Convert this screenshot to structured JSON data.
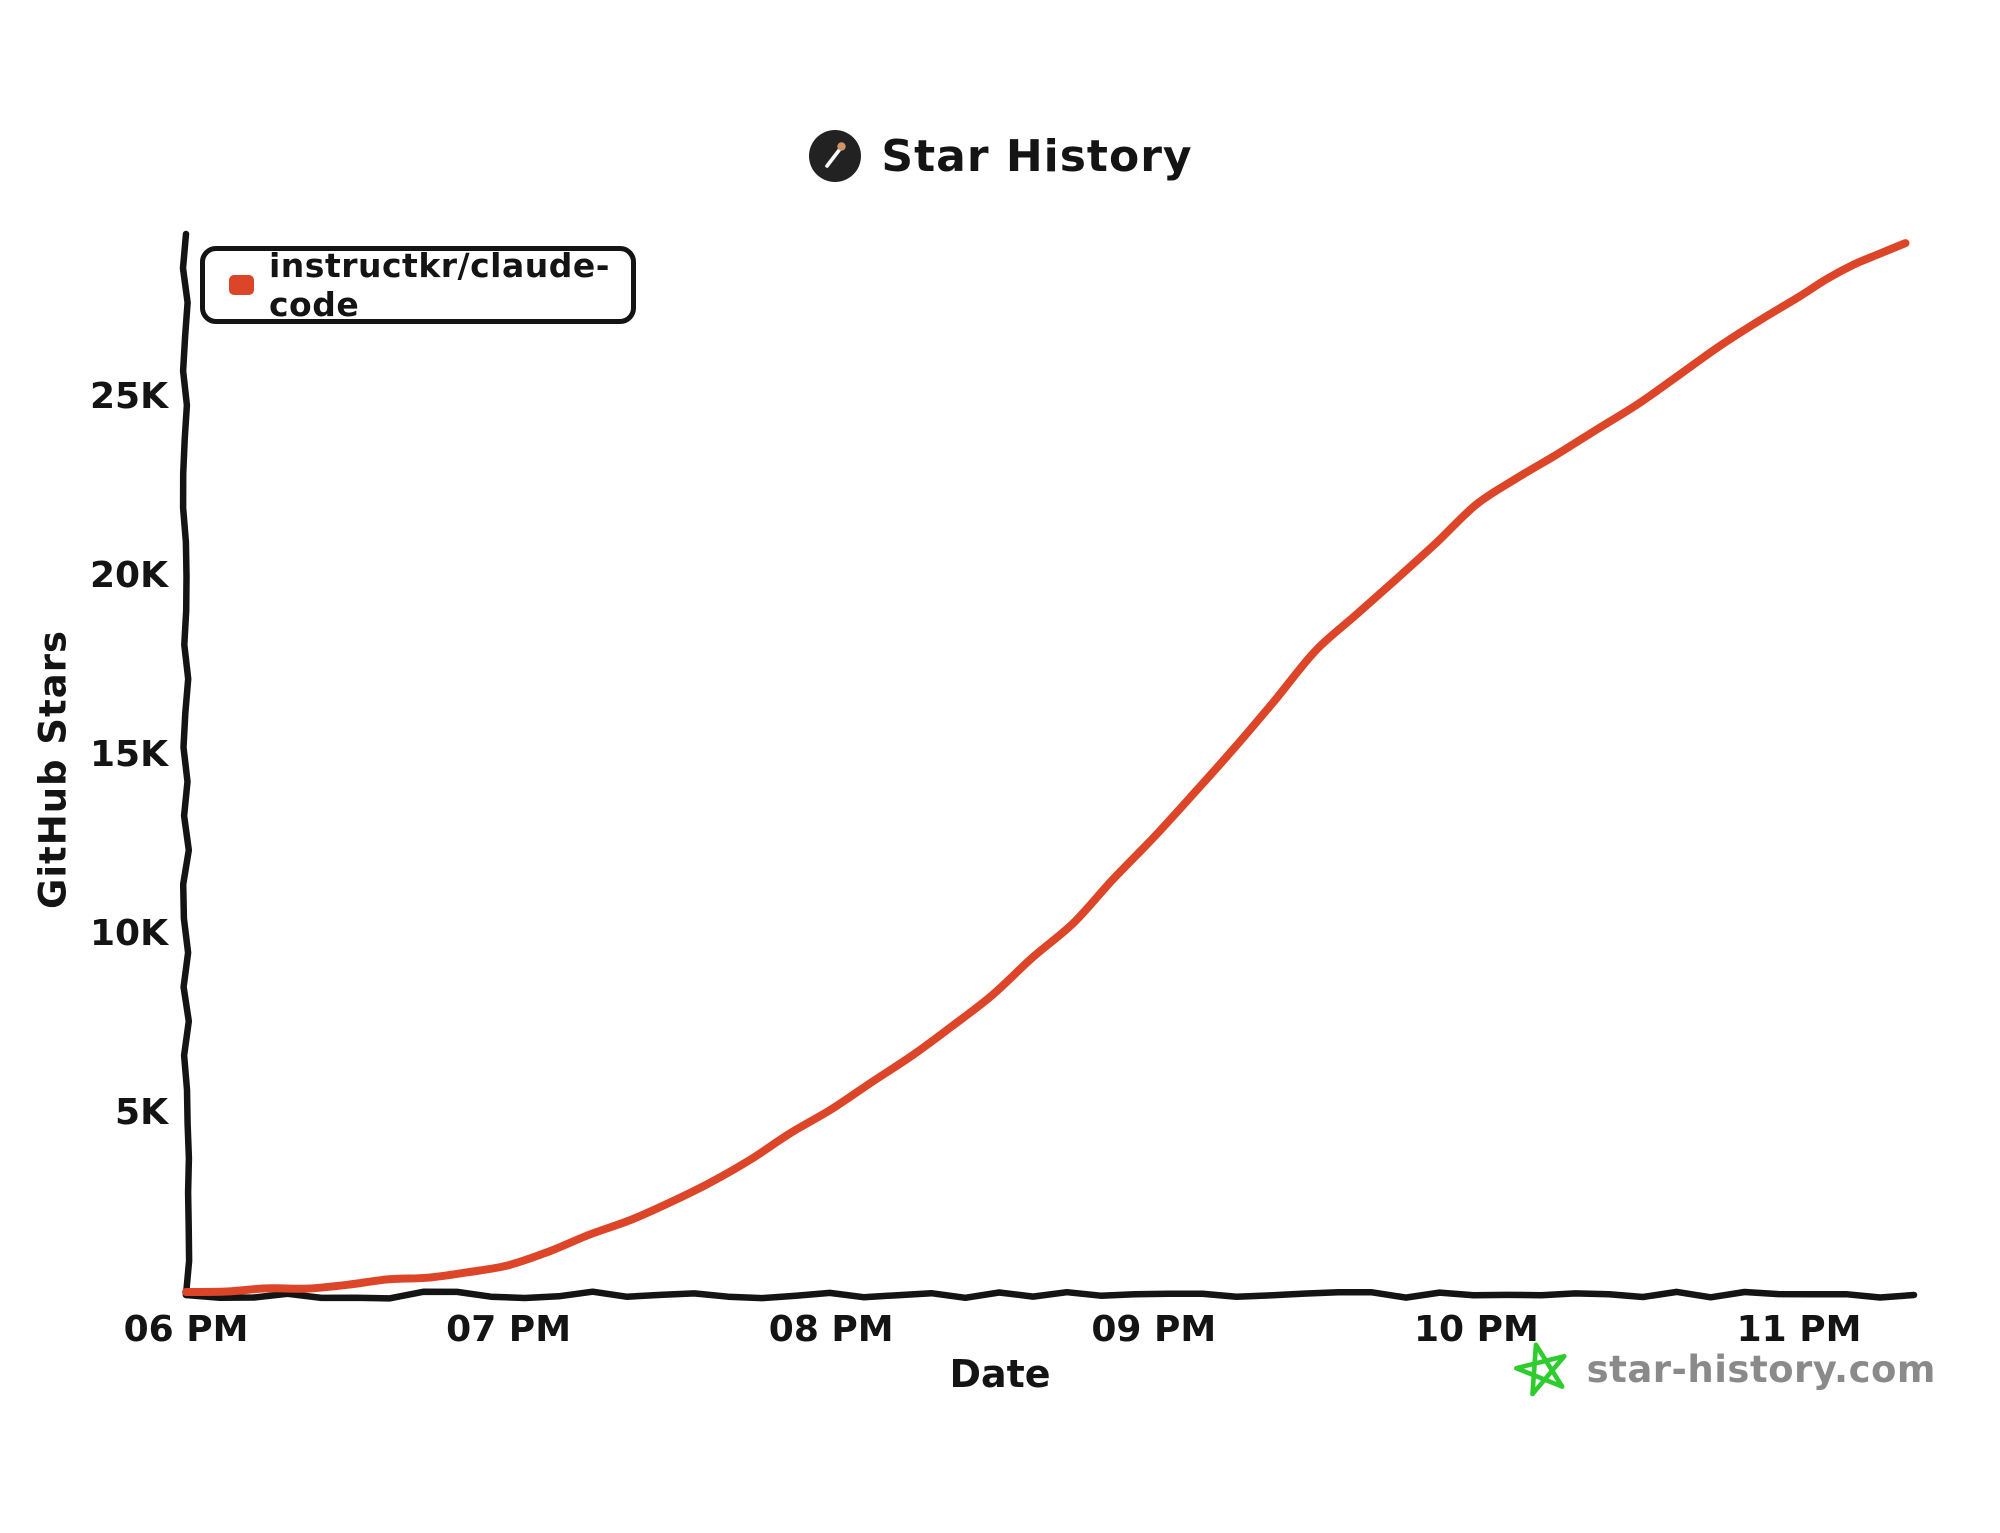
{
  "title": {
    "text": "Star History"
  },
  "legend": {
    "label": "instructkr/claude-code",
    "marker_color": "#DD4528"
  },
  "watermark": {
    "text": "star-history.com",
    "star_color": "#2FCC2F",
    "text_color": "#8a8a8a"
  },
  "colors": {
    "line": "#DD4528",
    "axis": "#141414",
    "background": "#ffffff",
    "logo_circle": "#222222",
    "logo_match_tip": "#cf9566"
  },
  "chart_data": {
    "type": "line",
    "title": "Star History",
    "xlabel": "Date",
    "ylabel": "GitHub Stars",
    "grid": false,
    "legend_position": "top-left",
    "x_ticks": [
      {
        "label": "06 PM",
        "hour": 18
      },
      {
        "label": "07 PM",
        "hour": 19
      },
      {
        "label": "08 PM",
        "hour": 20
      },
      {
        "label": "09 PM",
        "hour": 21
      },
      {
        "label": "10 PM",
        "hour": 22
      },
      {
        "label": "11 PM",
        "hour": 23
      }
    ],
    "y_ticks": [
      {
        "label": "5K",
        "value": 5000
      },
      {
        "label": "10K",
        "value": 10000
      },
      {
        "label": "15K",
        "value": 15000
      },
      {
        "label": "20K",
        "value": 20000
      },
      {
        "label": "25K",
        "value": 25000
      }
    ],
    "xlim_hours": [
      18,
      23.35
    ],
    "ylim": [
      0,
      29500
    ],
    "series": [
      {
        "name": "instructkr/claude-code",
        "color": "#DD4528",
        "times": [
          "6:00 PM",
          "6:15 PM",
          "6:30 PM",
          "6:45 PM",
          "7:00 PM",
          "7:15 PM",
          "7:30 PM",
          "7:45 PM",
          "8:00 PM",
          "8:15 PM",
          "8:30 PM",
          "8:45 PM",
          "9:00 PM",
          "9:15 PM",
          "9:30 PM",
          "9:45 PM",
          "10:00 PM",
          "10:15 PM",
          "10:30 PM",
          "10:45 PM",
          "11:00 PM",
          "11:10 PM",
          "11:20 PM"
        ],
        "x_hours": [
          18,
          18.25,
          18.5,
          18.75,
          19,
          19.25,
          19.5,
          19.75,
          20,
          20.25,
          20.5,
          20.75,
          21,
          21.25,
          21.5,
          21.75,
          22,
          22.25,
          22.5,
          22.75,
          23,
          23.17,
          23.33
        ],
        "values": [
          0,
          100,
          200,
          400,
          750,
          1600,
          2500,
          3700,
          5100,
          6600,
          8300,
          10300,
          12700,
          15200,
          17900,
          19900,
          22000,
          23400,
          24800,
          26400,
          27800,
          28700,
          29300
        ]
      }
    ]
  }
}
